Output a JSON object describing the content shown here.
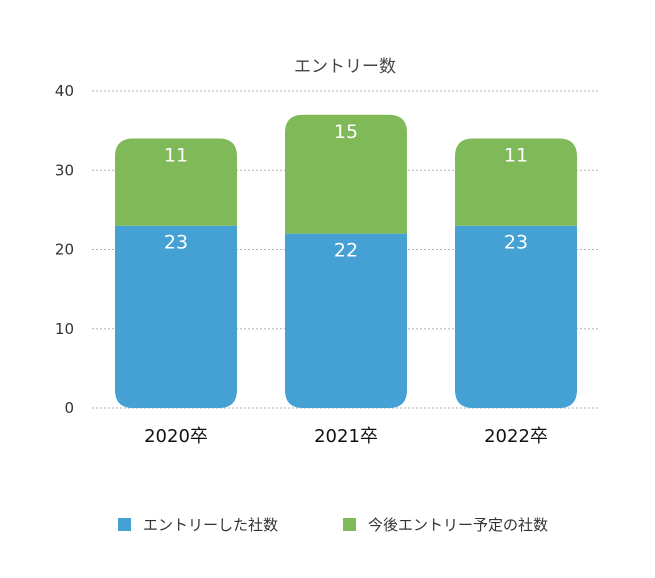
{
  "chart_data": {
    "type": "bar",
    "stacked": true,
    "title": "エントリー数",
    "categories": [
      "2020卒",
      "2021卒",
      "2022卒"
    ],
    "series": [
      {
        "name": "エントリーした社数",
        "values": [
          23,
          22,
          23
        ],
        "color": "#45a0d4"
      },
      {
        "name": "今後エントリー予定の社数",
        "values": [
          11,
          15,
          11
        ],
        "color": "#80b957"
      }
    ],
    "ylim": [
      0,
      40
    ],
    "yticks": [
      0,
      10,
      20,
      30,
      40
    ],
    "grid": true,
    "legend": "bottom"
  }
}
